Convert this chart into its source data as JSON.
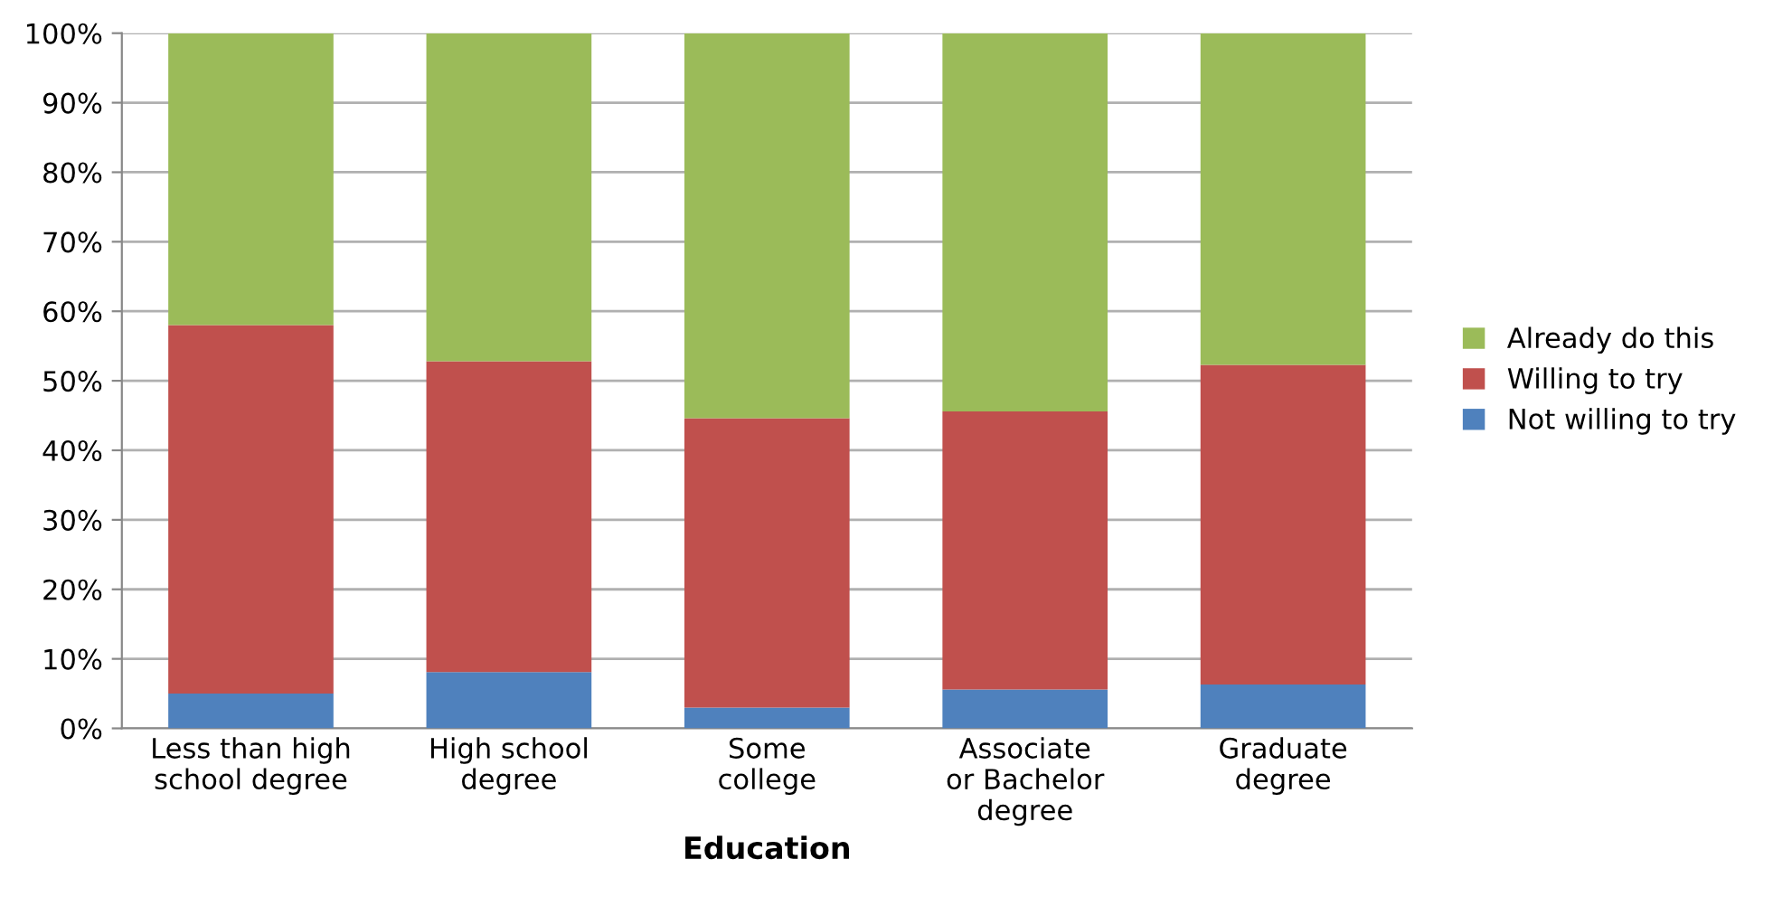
{
  "chart_data": {
    "type": "bar",
    "stacked": true,
    "xlabel": "Education",
    "categories": [
      "Less than high\nschool degree",
      "High school\ndegree",
      "Some\ncollege",
      "Associate\nor Bachelor\ndegree",
      "Graduate\ndegree"
    ],
    "series": [
      {
        "name": "Not willing to try",
        "color": "#4f81bd",
        "values": [
          5.0,
          8.1,
          3.0,
          5.6,
          6.3
        ]
      },
      {
        "name": "Willing to try",
        "color": "#c0504d",
        "values": [
          53.0,
          44.7,
          41.6,
          40.0,
          46.0
        ]
      },
      {
        "name": "Already do this",
        "color": "#9bbb59",
        "values": [
          42.0,
          47.2,
          55.4,
          54.4,
          47.7
        ]
      }
    ],
    "ylim": [
      0,
      100
    ],
    "yticks": [
      {
        "value": 0,
        "label": "0%"
      },
      {
        "value": 10,
        "label": "10%"
      },
      {
        "value": 20,
        "label": "20%"
      },
      {
        "value": 30,
        "label": "30%"
      },
      {
        "value": 40,
        "label": "40%"
      },
      {
        "value": 50,
        "label": "50%"
      },
      {
        "value": 60,
        "label": "60%"
      },
      {
        "value": 70,
        "label": "70%"
      },
      {
        "value": 80,
        "label": "80%"
      },
      {
        "value": 90,
        "label": "90%"
      },
      {
        "value": 100,
        "label": "100%"
      }
    ],
    "grid": "y",
    "legend": "right"
  }
}
